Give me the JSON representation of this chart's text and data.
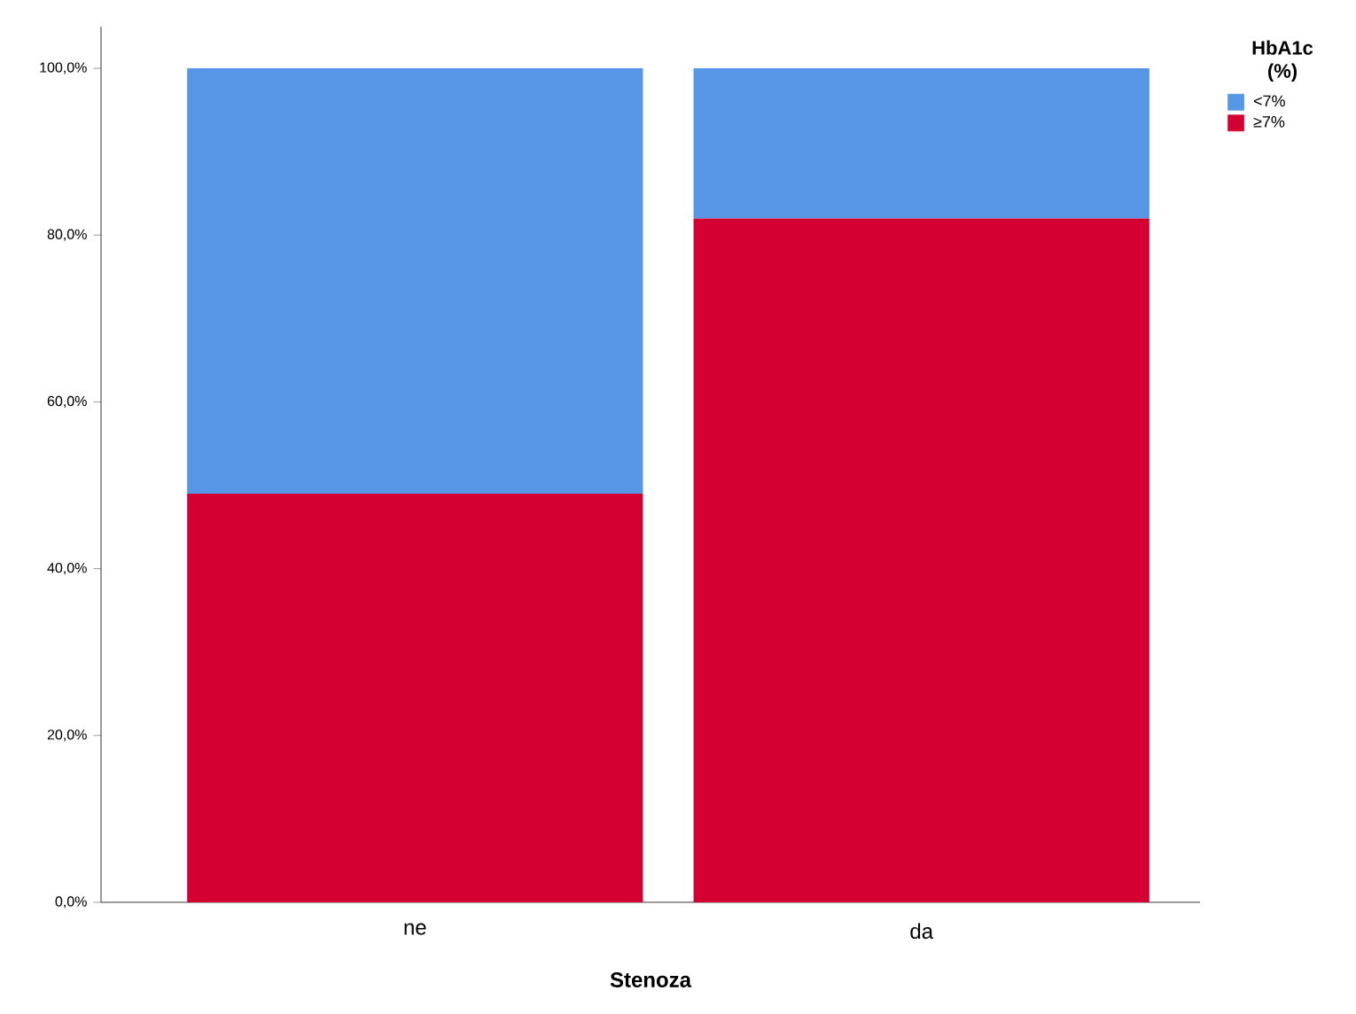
{
  "chart_data": {
    "type": "bar",
    "stacked": true,
    "xlabel": "Stenoza",
    "legend_title": "HbA1c (%)",
    "categories": [
      "ne",
      "da"
    ],
    "series": [
      {
        "name": "≥7%",
        "color": "#d50032",
        "values": [
          49,
          82
        ]
      },
      {
        "name": "<7%",
        "color": "#5596e6",
        "values": [
          51,
          18
        ]
      }
    ],
    "ylim": [
      0,
      105
    ],
    "yticks": [
      {
        "value": 0,
        "label": "0,0%"
      },
      {
        "value": 20,
        "label": "20,0%"
      },
      {
        "value": 40,
        "label": "40,0%"
      },
      {
        "value": 60,
        "label": "60,0%"
      },
      {
        "value": 80,
        "label": "80,0%"
      },
      {
        "value": 100,
        "label": "100,0%"
      }
    ],
    "grid": false,
    "legend": "top right"
  }
}
